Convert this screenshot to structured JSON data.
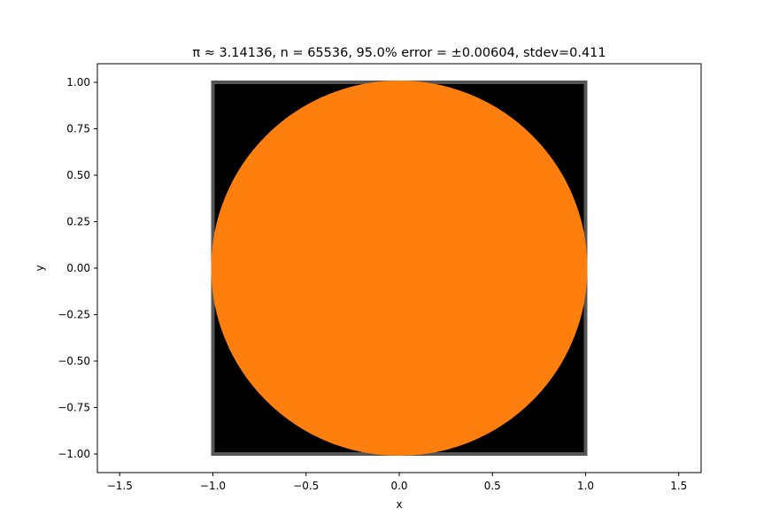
{
  "chart_data": {
    "type": "scatter",
    "title": "π ≈ 3.14136, n = 65536, 95.0% error = ±0.00604, stdev=0.411",
    "xlabel": "x",
    "ylabel": "y",
    "xlim": [
      -1.62,
      1.62
    ],
    "ylim": [
      -1.1,
      1.1
    ],
    "x_ticks": [
      -1.5,
      -1.0,
      -0.5,
      0.0,
      0.5,
      1.0,
      1.5
    ],
    "x_tick_labels": [
      "−1.5",
      "−1.0",
      "−0.5",
      "0.0",
      "0.5",
      "1.0",
      "1.5"
    ],
    "y_ticks": [
      -1.0,
      -0.75,
      -0.5,
      -0.25,
      0.0,
      0.25,
      0.5,
      0.75,
      1.0
    ],
    "y_tick_labels": [
      "−1.00",
      "−0.75",
      "−0.50",
      "−0.25",
      "0.00",
      "0.25",
      "0.50",
      "0.75",
      "1.00"
    ],
    "grid": false,
    "n": 65536,
    "pi_estimate": 3.14136,
    "series": [
      {
        "role": "outside-unit-circle",
        "color": "#000000",
        "sample_region": "square [-1,1]×[-1,1], r > 1"
      },
      {
        "role": "inside-unit-circle",
        "color": "#ff7f0e",
        "sample_region": "r ≤ 1"
      }
    ]
  }
}
